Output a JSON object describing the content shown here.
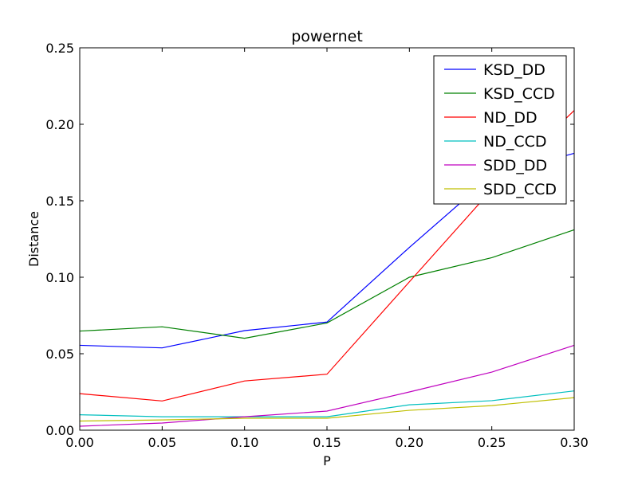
{
  "chart_data": {
    "type": "line",
    "title": "powernet",
    "xlabel": "P",
    "ylabel": "Distance",
    "x": [
      0.0,
      0.05,
      0.1,
      0.15,
      0.2,
      0.25,
      0.3
    ],
    "xlim": [
      0.0,
      0.3
    ],
    "ylim": [
      0.0,
      0.25
    ],
    "xticks": [
      "0.00",
      "0.05",
      "0.10",
      "0.15",
      "0.20",
      "0.25",
      "0.30"
    ],
    "yticks": [
      "0.00",
      "0.05",
      "0.10",
      "0.15",
      "0.20",
      "0.25"
    ],
    "grid": false,
    "legend_position": "top-right",
    "series": [
      {
        "name": "KSD_DD",
        "color": "#0000ff",
        "values": [
          0.0555,
          0.0538,
          0.0651,
          0.0707,
          0.1195,
          0.1665,
          0.181
        ]
      },
      {
        "name": "KSD_CCD",
        "color": "#008000",
        "values": [
          0.0648,
          0.0676,
          0.0601,
          0.0701,
          0.1,
          0.1128,
          0.131
        ]
      },
      {
        "name": "ND_DD",
        "color": "#ff0000",
        "values": [
          0.0239,
          0.0191,
          0.0322,
          0.0366,
          0.097,
          0.1573,
          0.209
        ]
      },
      {
        "name": "ND_CCD",
        "color": "#00bfbf",
        "values": [
          0.0101,
          0.0088,
          0.0088,
          0.0088,
          0.0166,
          0.0193,
          0.0257
        ]
      },
      {
        "name": "SDD_DD",
        "color": "#bf00bf",
        "values": [
          0.0026,
          0.0047,
          0.0088,
          0.0125,
          0.025,
          0.038,
          0.0555
        ]
      },
      {
        "name": "SDD_CCD",
        "color": "#bfbf00",
        "values": [
          0.006,
          0.0067,
          0.0078,
          0.0078,
          0.013,
          0.0161,
          0.0213
        ]
      }
    ]
  }
}
